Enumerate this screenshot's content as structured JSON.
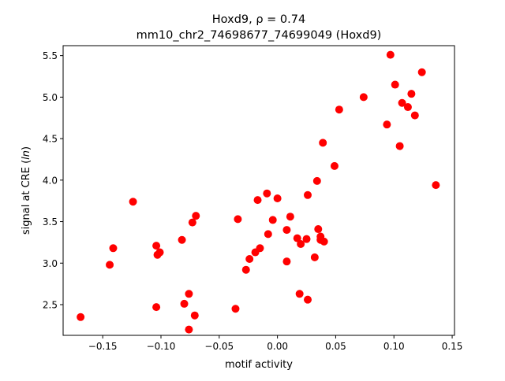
{
  "chart_data": {
    "type": "scatter",
    "title_line1": "Hoxd9, ρ = 0.74",
    "title_line2": "mm10_chr2_74698677_74699049 (Hoxd9)",
    "xlabel": "motif activity",
    "ylabel_prefix": "signal at CRE (",
    "ylabel_italic": "ln",
    "ylabel_suffix": ")",
    "xlim": [
      -0.184,
      0.152
    ],
    "ylim": [
      2.13,
      5.62
    ],
    "xticks": [
      -0.15,
      -0.1,
      -0.05,
      0.0,
      0.05,
      0.1,
      0.15
    ],
    "xtick_labels": [
      "−0.15",
      "−0.10",
      "−0.05",
      "0.00",
      "0.05",
      "0.10",
      "0.15"
    ],
    "yticks": [
      2.5,
      3.0,
      3.5,
      4.0,
      4.5,
      5.0,
      5.5
    ],
    "ytick_labels": [
      "2.5",
      "3.0",
      "3.5",
      "4.0",
      "4.5",
      "5.0",
      "5.5"
    ],
    "grid": false,
    "marker_color": "#ff0000",
    "points": [
      [
        -0.169,
        2.35
      ],
      [
        -0.144,
        2.98
      ],
      [
        -0.141,
        3.18
      ],
      [
        -0.124,
        3.74
      ],
      [
        -0.104,
        3.21
      ],
      [
        -0.103,
        3.1
      ],
      [
        -0.101,
        3.13
      ],
      [
        -0.104,
        2.47
      ],
      [
        -0.082,
        3.28
      ],
      [
        -0.08,
        2.51
      ],
      [
        -0.076,
        2.63
      ],
      [
        -0.076,
        2.2
      ],
      [
        -0.073,
        3.49
      ],
      [
        -0.07,
        3.57
      ],
      [
        -0.071,
        2.37
      ],
      [
        -0.036,
        2.45
      ],
      [
        -0.034,
        3.53
      ],
      [
        -0.027,
        2.92
      ],
      [
        -0.024,
        3.05
      ],
      [
        -0.019,
        3.13
      ],
      [
        -0.015,
        3.18
      ],
      [
        -0.017,
        3.76
      ],
      [
        -0.009,
        3.84
      ],
      [
        -0.008,
        3.35
      ],
      [
        -0.004,
        3.52
      ],
      [
        0.0,
        3.78
      ],
      [
        0.008,
        3.4
      ],
      [
        0.008,
        3.02
      ],
      [
        0.011,
        3.56
      ],
      [
        0.017,
        3.3
      ],
      [
        0.019,
        2.63
      ],
      [
        0.02,
        3.23
      ],
      [
        0.025,
        3.29
      ],
      [
        0.026,
        3.82
      ],
      [
        0.026,
        2.56
      ],
      [
        0.032,
        3.07
      ],
      [
        0.034,
        3.99
      ],
      [
        0.035,
        3.41
      ],
      [
        0.037,
        3.32
      ],
      [
        0.037,
        3.28
      ],
      [
        0.04,
        3.26
      ],
      [
        0.039,
        4.45
      ],
      [
        0.049,
        4.17
      ],
      [
        0.053,
        4.85
      ],
      [
        0.074,
        5.0
      ],
      [
        0.094,
        4.67
      ],
      [
        0.097,
        5.51
      ],
      [
        0.101,
        5.15
      ],
      [
        0.105,
        4.41
      ],
      [
        0.107,
        4.93
      ],
      [
        0.112,
        4.88
      ],
      [
        0.115,
        5.04
      ],
      [
        0.118,
        4.78
      ],
      [
        0.124,
        5.3
      ],
      [
        0.136,
        3.94
      ]
    ]
  }
}
